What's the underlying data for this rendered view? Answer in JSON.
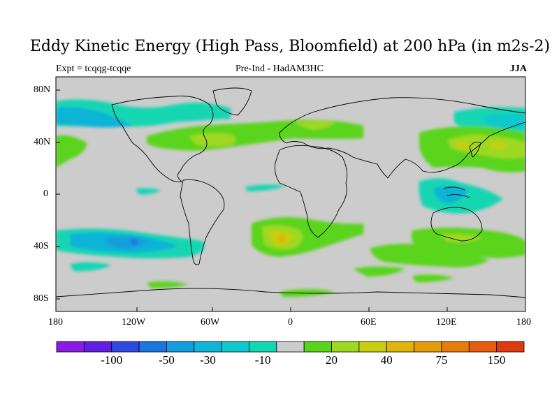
{
  "header": {
    "title": "Eddy Kinetic Energy (High Pass, Bloomfield) at 200 hPa (in m2s-2)",
    "left": "Expt = tcqqg-tcqqe",
    "center": "Pre-Ind - HadAM3HC",
    "right": "JJA"
  },
  "axes": {
    "lat_labels": [
      "80N",
      "40N",
      "0",
      "40S",
      "80S"
    ],
    "lon_labels": [
      "180",
      "120W",
      "60W",
      "0",
      "60E",
      "120E",
      "180"
    ]
  },
  "colorbar": {
    "colors": [
      "#8a1be4",
      "#5f1ee0",
      "#2e49e0",
      "#1a76dc",
      "#139ddd",
      "#10b4d6",
      "#10c8cd",
      "#14d6b2",
      "#cccccc",
      "#5ad41a",
      "#9ed820",
      "#c8cf10",
      "#e0b40c",
      "#e59c0c",
      "#e57c0c",
      "#e55c0c",
      "#dd3a10"
    ],
    "labels": [
      "-100",
      "-50",
      "-30",
      "-10",
      "20",
      "40",
      "75",
      "150"
    ]
  },
  "colors": {
    "land_background": "#cccccc",
    "coast": "#000000"
  }
}
